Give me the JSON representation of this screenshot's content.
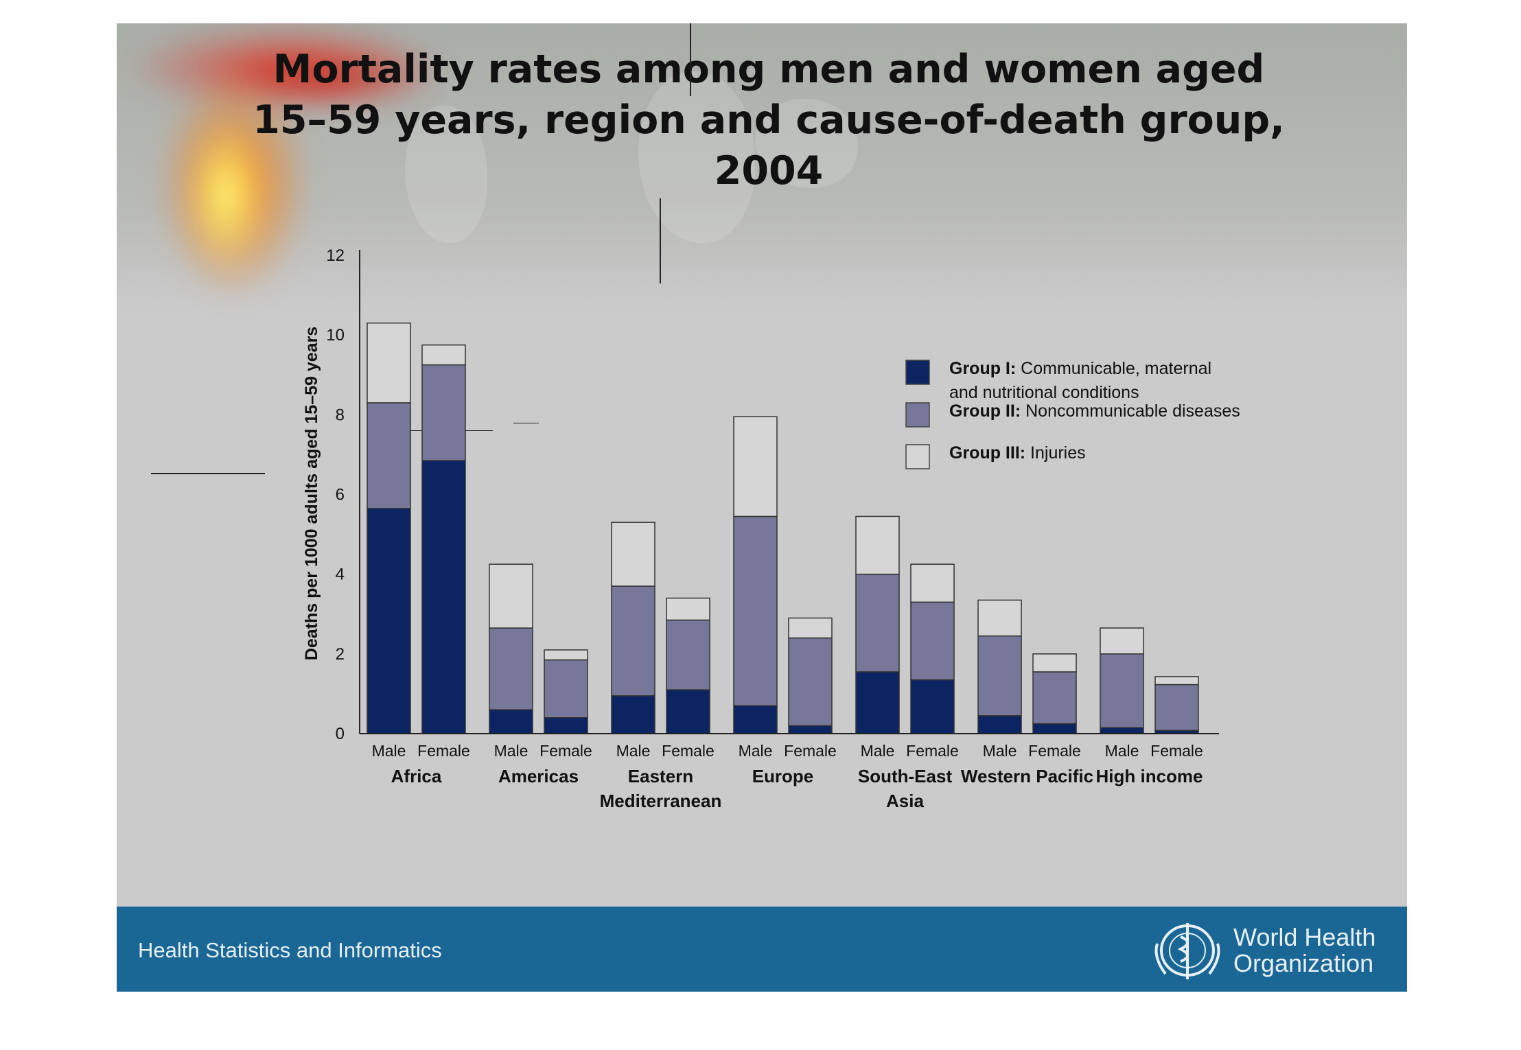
{
  "slide": {
    "title_lines": [
      "Mortality rates among men and women aged",
      "15–59 years, region and cause-of-death group,",
      "2004"
    ],
    "footer_text": "Health Statistics and Informatics",
    "org_name_lines": [
      "World Health",
      "Organization"
    ]
  },
  "colors": {
    "group1": "#0c2462",
    "group2": "#777799",
    "group3": "#d6d6d6",
    "footer": "#1a6796"
  },
  "chart_data": {
    "type": "bar",
    "stacked": true,
    "title": "Mortality rates among men and women aged 15–59 years, region and cause-of-death group, 2004",
    "ylabel": "Deaths per 1000 adults aged 15–59 years",
    "xlabel": "",
    "ylim": [
      0,
      12
    ],
    "yticks": [
      0,
      2,
      4,
      6,
      8,
      10,
      12
    ],
    "legend_position": "top-right",
    "legend": [
      {
        "bold": "Group I:",
        "text_lines": [
          "Communicable, maternal",
          "and nutritional conditions"
        ]
      },
      {
        "bold": "Group II:",
        "text_lines": [
          "Noncommunicable diseases"
        ]
      },
      {
        "bold": "Group III:",
        "text_lines": [
          "Injuries"
        ]
      }
    ],
    "regions": [
      {
        "label_lines": [
          "Africa"
        ]
      },
      {
        "label_lines": [
          "Americas"
        ]
      },
      {
        "label_lines": [
          "Eastern",
          "Mediterranean"
        ]
      },
      {
        "label_lines": [
          "Europe"
        ]
      },
      {
        "label_lines": [
          "South-East",
          "Asia"
        ]
      },
      {
        "label_lines": [
          "Western Pacific"
        ]
      },
      {
        "label_lines": [
          "High income"
        ]
      }
    ],
    "categories": [
      "Male",
      "Female",
      "Male",
      "Female",
      "Male",
      "Female",
      "Male",
      "Female",
      "Male",
      "Female",
      "Male",
      "Female",
      "Male",
      "Female"
    ],
    "series": [
      {
        "name": "Group I",
        "values": [
          5.65,
          6.85,
          0.6,
          0.4,
          0.95,
          1.1,
          0.7,
          0.2,
          1.55,
          1.35,
          0.45,
          0.25,
          0.15,
          0.08
        ]
      },
      {
        "name": "Group II",
        "values": [
          2.65,
          2.4,
          2.05,
          1.45,
          2.75,
          1.75,
          4.75,
          2.2,
          2.45,
          1.95,
          2.0,
          1.3,
          1.85,
          1.15
        ]
      },
      {
        "name": "Group III",
        "values": [
          2.0,
          0.5,
          1.6,
          0.25,
          1.6,
          0.55,
          2.5,
          0.5,
          1.45,
          0.95,
          0.9,
          0.45,
          0.65,
          0.2
        ]
      }
    ]
  }
}
